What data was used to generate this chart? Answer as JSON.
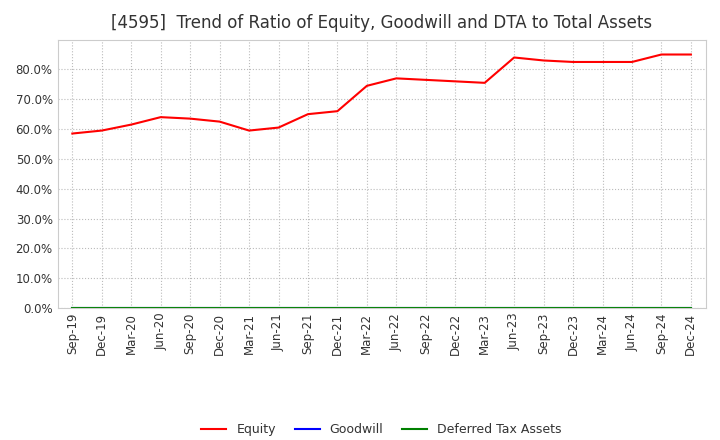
{
  "title": "[4595]  Trend of Ratio of Equity, Goodwill and DTA to Total Assets",
  "x_labels": [
    "Sep-19",
    "Dec-19",
    "Mar-20",
    "Jun-20",
    "Sep-20",
    "Dec-20",
    "Mar-21",
    "Jun-21",
    "Sep-21",
    "Dec-21",
    "Mar-22",
    "Jun-22",
    "Sep-22",
    "Dec-22",
    "Mar-23",
    "Jun-23",
    "Sep-23",
    "Dec-23",
    "Mar-24",
    "Jun-24",
    "Sep-24",
    "Dec-24"
  ],
  "equity": [
    58.5,
    59.5,
    61.5,
    64.0,
    63.5,
    62.5,
    59.5,
    60.5,
    65.0,
    66.0,
    74.5,
    77.0,
    76.5,
    76.0,
    75.5,
    84.0,
    83.0,
    82.5,
    82.5,
    82.5,
    85.0,
    85.0
  ],
  "goodwill": [
    0.0,
    0.0,
    0.0,
    0.0,
    0.0,
    0.0,
    0.0,
    0.0,
    0.0,
    0.0,
    0.0,
    0.0,
    0.0,
    0.0,
    0.0,
    0.0,
    0.0,
    0.0,
    0.0,
    0.0,
    0.0,
    0.0
  ],
  "dta": [
    0.0,
    0.0,
    0.0,
    0.0,
    0.0,
    0.0,
    0.0,
    0.0,
    0.0,
    0.0,
    0.0,
    0.0,
    0.0,
    0.0,
    0.0,
    0.0,
    0.0,
    0.0,
    0.0,
    0.0,
    0.0,
    0.0
  ],
  "equity_color": "#FF0000",
  "goodwill_color": "#0000FF",
  "dta_color": "#008000",
  "ylim": [
    0,
    90
  ],
  "yticks": [
    0,
    10,
    20,
    30,
    40,
    50,
    60,
    70,
    80
  ],
  "background_color": "#FFFFFF",
  "plot_bg_color": "#FFFFFF",
  "grid_color": "#BBBBBB",
  "title_fontsize": 12,
  "tick_fontsize": 8.5,
  "legend_labels": [
    "Equity",
    "Goodwill",
    "Deferred Tax Assets"
  ]
}
